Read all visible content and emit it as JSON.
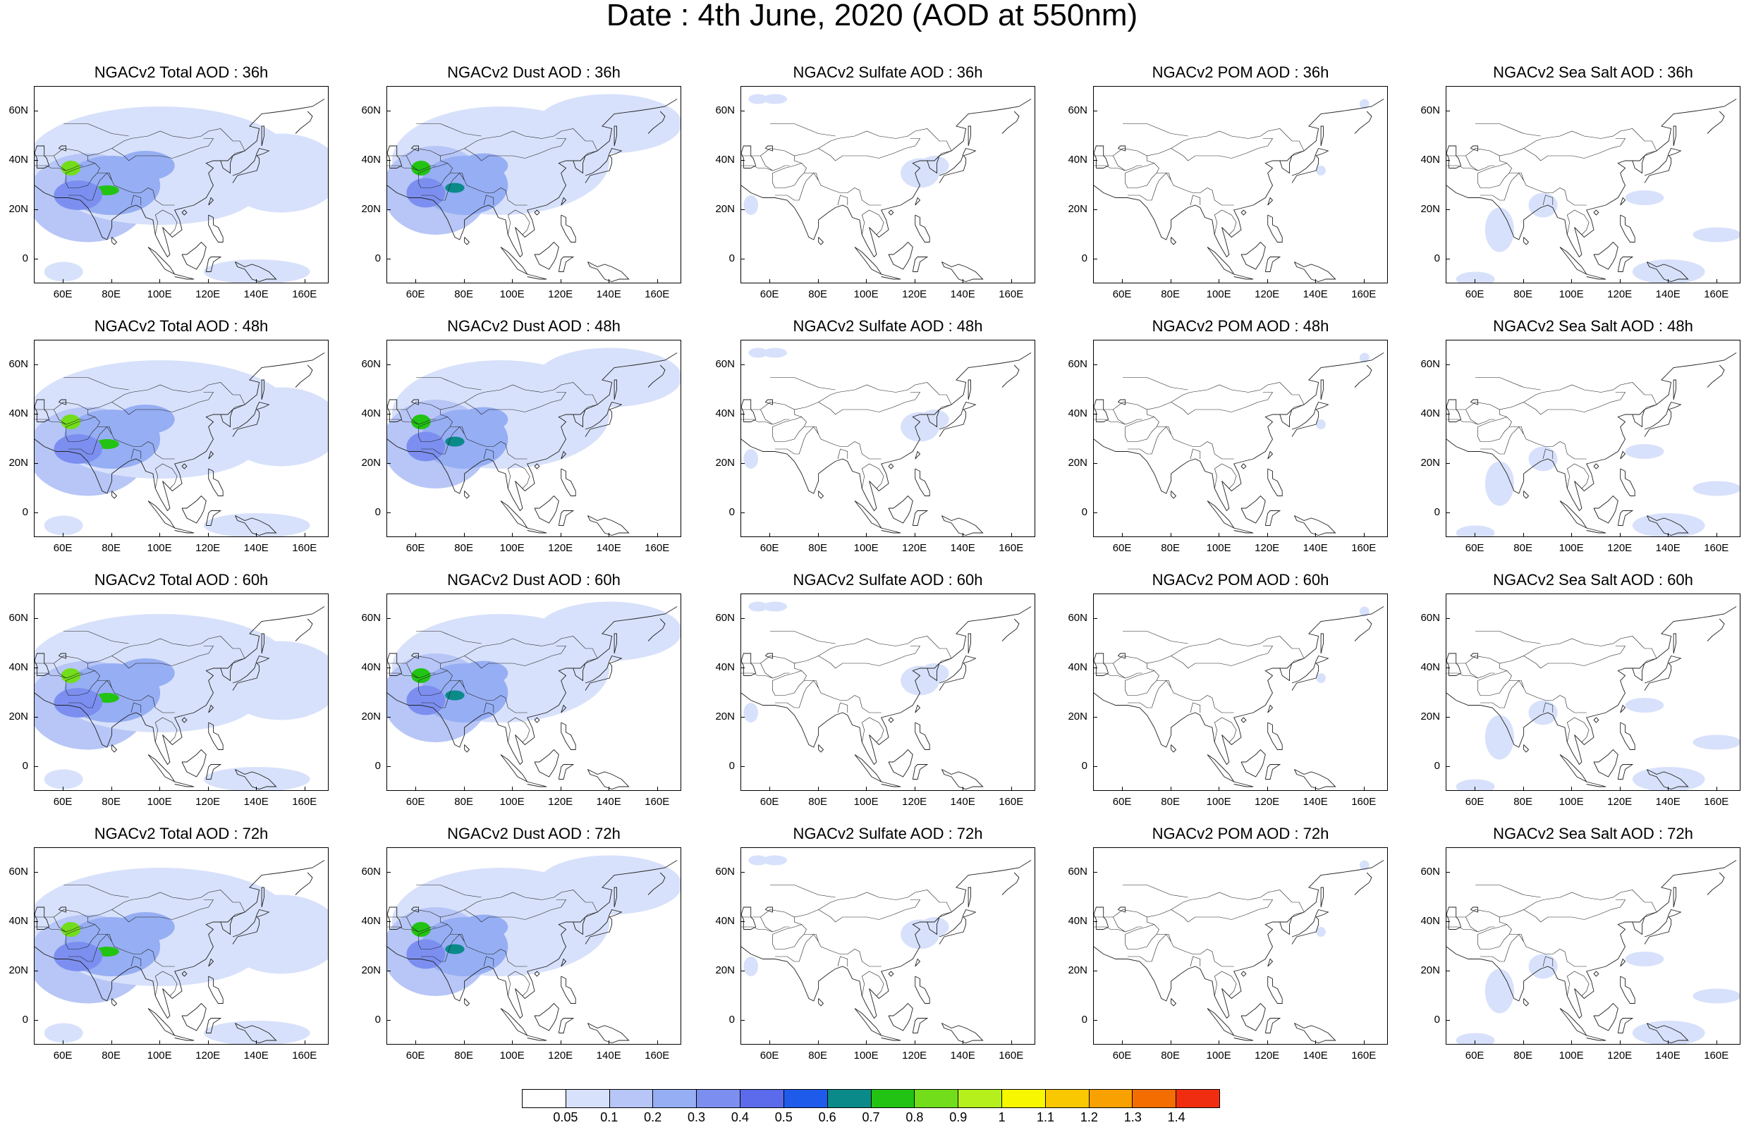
{
  "title": "Date : 4th June, 2020 (AOD at 550nm)",
  "panels": [
    {
      "title": "NGACv2 Total AOD : 36h",
      "species": "total",
      "forecast_hour": "36h"
    },
    {
      "title": "NGACv2 Dust AOD : 36h",
      "species": "dust",
      "forecast_hour": "36h"
    },
    {
      "title": "NGACv2 Sulfate AOD : 36h",
      "species": "sulfate",
      "forecast_hour": "36h"
    },
    {
      "title": "NGACv2 POM AOD : 36h",
      "species": "pom",
      "forecast_hour": "36h"
    },
    {
      "title": "NGACv2 Sea Salt AOD : 36h",
      "species": "seasalt",
      "forecast_hour": "36h"
    },
    {
      "title": "NGACv2 Total AOD : 48h",
      "species": "total",
      "forecast_hour": "48h"
    },
    {
      "title": "NGACv2 Dust AOD : 48h",
      "species": "dust",
      "forecast_hour": "48h"
    },
    {
      "title": "NGACv2 Sulfate AOD : 48h",
      "species": "sulfate",
      "forecast_hour": "48h"
    },
    {
      "title": "NGACv2 POM AOD : 48h",
      "species": "pom",
      "forecast_hour": "48h"
    },
    {
      "title": "NGACv2 Sea Salt AOD : 48h",
      "species": "seasalt",
      "forecast_hour": "48h"
    },
    {
      "title": "NGACv2 Total AOD : 60h",
      "species": "total",
      "forecast_hour": "60h"
    },
    {
      "title": "NGACv2 Dust AOD : 60h",
      "species": "dust",
      "forecast_hour": "60h"
    },
    {
      "title": "NGACv2 Sulfate AOD : 60h",
      "species": "sulfate",
      "forecast_hour": "60h"
    },
    {
      "title": "NGACv2 POM AOD : 60h",
      "species": "pom",
      "forecast_hour": "60h"
    },
    {
      "title": "NGACv2 Sea Salt AOD : 60h",
      "species": "seasalt",
      "forecast_hour": "60h"
    },
    {
      "title": "NGACv2 Total AOD : 72h",
      "species": "total",
      "forecast_hour": "72h"
    },
    {
      "title": "NGACv2 Dust AOD : 72h",
      "species": "dust",
      "forecast_hour": "72h"
    },
    {
      "title": "NGACv2 Sulfate AOD : 72h",
      "species": "sulfate",
      "forecast_hour": "72h"
    },
    {
      "title": "NGACv2 POM AOD : 72h",
      "species": "pom",
      "forecast_hour": "72h"
    },
    {
      "title": "NGACv2 Sea Salt  AOD : 72h",
      "species": "seasalt",
      "forecast_hour": "72h"
    }
  ],
  "lat_ticks": [
    "60N",
    "40N",
    "20N",
    "0"
  ],
  "lon_ticks": [
    "60E",
    "80E",
    "100E",
    "120E",
    "140E",
    "160E"
  ],
  "map_extent": {
    "lon_min": 48,
    "lon_max": 170,
    "lat_min": -10,
    "lat_max": 70
  },
  "lat_tick_values": [
    60,
    40,
    20,
    0
  ],
  "lon_tick_values": [
    60,
    80,
    100,
    120,
    140,
    160
  ],
  "colorbar": {
    "colors": [
      "#ffffff",
      "#d8e1fb",
      "#b7c6f6",
      "#96aef3",
      "#7c8ff0",
      "#5b6bec",
      "#1f5bea",
      "#0b8a8a",
      "#23c313",
      "#72dd1a",
      "#b6f01c",
      "#f7f700",
      "#f9c800",
      "#f8a100",
      "#f46d00",
      "#f02d10"
    ],
    "labels": [
      "0.05",
      "0.1",
      "0.2",
      "0.3",
      "0.4",
      "0.5",
      "0.6",
      "0.7",
      "0.8",
      "0.9",
      "1",
      "1.1",
      "1.2",
      "1.3",
      "1.4"
    ]
  }
}
